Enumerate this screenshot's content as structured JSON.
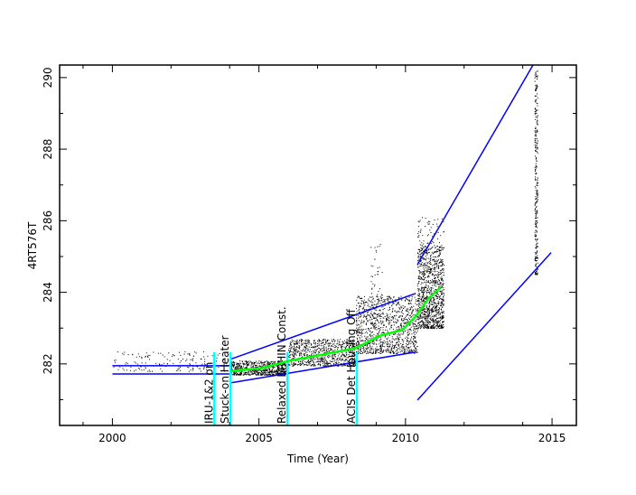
{
  "chart_data": {
    "type": "scatter",
    "title": "",
    "xlabel": "Time (Year)",
    "ylabel": "4RT576T",
    "xlim": [
      1998.2,
      2015.83
    ],
    "ylim": [
      280.28,
      290.35
    ],
    "x_ticks": [
      2000,
      2005,
      2010,
      2015
    ],
    "x_minor_ticks": [
      1999,
      2002,
      2004,
      2007,
      2009,
      2012,
      2014
    ],
    "y_ticks": [
      282,
      284,
      286,
      288,
      290
    ],
    "y_minor_ticks": [
      281,
      283,
      285,
      287,
      289
    ],
    "grid": false,
    "colors": {
      "points": "#000000",
      "limits": "#0000ff",
      "trend": "#00ff00",
      "events": "#00ffff"
    },
    "point_bands": [
      {
        "x": [
          2000.0,
          2003.9
        ],
        "y": [
          281.8,
          282.35
        ],
        "n": 160
      },
      {
        "x": [
          2004.0,
          2006.0
        ],
        "y": [
          281.7,
          282.1
        ],
        "n": 700
      },
      {
        "x": [
          2006.0,
          2008.3
        ],
        "y": [
          281.95,
          282.7
        ],
        "n": 800
      },
      {
        "x": [
          2008.3,
          2010.4
        ],
        "y": [
          282.3,
          283.9
        ],
        "n": 1100
      },
      {
        "x": [
          2008.8,
          2009.2
        ],
        "y": [
          283.0,
          285.4
        ],
        "n": 60
      },
      {
        "x": [
          2010.4,
          2011.3
        ],
        "y": [
          283.0,
          285.3
        ],
        "n": 1100
      },
      {
        "x": [
          2010.4,
          2011.3
        ],
        "y": [
          285.3,
          286.1
        ],
        "n": 60
      },
      {
        "x": [
          2014.4,
          2014.5
        ],
        "y": [
          284.5,
          290.2
        ],
        "n": 300
      }
    ],
    "limit_lines": [
      {
        "points": [
          [
            2000,
            281.95
          ],
          [
            2004.03,
            281.95
          ]
        ]
      },
      {
        "points": [
          [
            2000,
            281.72
          ],
          [
            2004.03,
            281.72
          ]
        ]
      },
      {
        "points": [
          [
            2004.03,
            282.13
          ],
          [
            2010.35,
            283.97
          ]
        ]
      },
      {
        "points": [
          [
            2004.03,
            281.47
          ],
          [
            2010.35,
            282.33
          ]
        ]
      },
      {
        "points": [
          [
            2010.41,
            284.78
          ],
          [
            2014.35,
            290.35
          ]
        ]
      },
      {
        "points": [
          [
            2010.41,
            280.99
          ],
          [
            2014.97,
            285.11
          ]
        ]
      }
    ],
    "trend": [
      [
        2004.03,
        281.8
      ],
      [
        2005.1,
        281.88
      ],
      [
        2006.0,
        282.08
      ],
      [
        2007.3,
        282.28
      ],
      [
        2008.34,
        282.45
      ],
      [
        2009.1,
        282.78
      ],
      [
        2009.9,
        282.95
      ],
      [
        2010.35,
        283.33
      ],
      [
        2010.8,
        283.84
      ],
      [
        2011.2,
        284.14
      ]
    ],
    "events": [
      {
        "x": 2003.48,
        "label": "IRU-1&2 on"
      },
      {
        "x": 2004.03,
        "label": "Stuck-on Heater"
      },
      {
        "x": 2005.97,
        "label": "Relaxed EPHIN Const."
      },
      {
        "x": 2008.34,
        "label": "ACIS Det Housing Off"
      }
    ]
  }
}
